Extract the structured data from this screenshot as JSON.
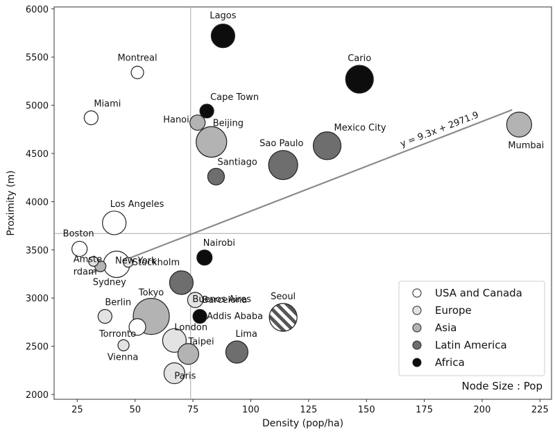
{
  "chart_data": {
    "type": "scatter",
    "xlabel": "Density (pop/ha)",
    "ylabel": "Proximity (m)",
    "xlim": [
      15,
      230
    ],
    "ylim": [
      1950,
      6020
    ],
    "xticks": [
      25,
      50,
      75,
      100,
      125,
      150,
      175,
      200,
      225
    ],
    "yticks": [
      2000,
      2500,
      3000,
      3500,
      4000,
      4500,
      5000,
      5500,
      6000
    ],
    "grid": false,
    "reference_lines": {
      "x": 74,
      "y": 3670
    },
    "trendline": {
      "label": "y = 9.3x + 2971.9",
      "slope": 9.3,
      "intercept": 2971.9,
      "x_range": [
        30,
        213
      ]
    },
    "legend": {
      "position": "bottom-right",
      "entries": [
        {
          "label": "USA and Canada",
          "color": "#ffffff"
        },
        {
          "label": "Europe",
          "color": "#e3e3e3"
        },
        {
          "label": "Asia",
          "color": "#b3b3b3"
        },
        {
          "label": "Latin America",
          "color": "#6e6e6e"
        },
        {
          "label": "Africa",
          "color": "#0d0d0d"
        }
      ]
    },
    "size_note": "Node Size : Pop",
    "colors": {
      "USA and Canada": "#ffffff",
      "Europe": "#e3e3e3",
      "Asia": "#b3b3b3",
      "Latin America": "#6e6e6e",
      "Africa": "#0d0d0d",
      "Seoul_hatch": "#555555",
      "trendline": "#8a8a8a",
      "reference": "#a8a8a8"
    },
    "points": [
      {
        "city": "Lagos",
        "region": "Africa",
        "x": 88,
        "y": 5720,
        "size": 17
      },
      {
        "city": "Montreal",
        "region": "USA and Canada",
        "x": 51,
        "y": 5340,
        "size": 9
      },
      {
        "city": "Cario",
        "region": "Africa",
        "x": 147,
        "y": 5270,
        "size": 20
      },
      {
        "city": "Miami",
        "region": "USA and Canada",
        "x": 31,
        "y": 4870,
        "size": 10
      },
      {
        "city": "Cape Town",
        "region": "Africa",
        "x": 81,
        "y": 4940,
        "size": 10
      },
      {
        "city": "Hanoi",
        "region": "Asia",
        "x": 77,
        "y": 4820,
        "size": 11
      },
      {
        "city": "Beijing",
        "region": "Asia",
        "x": 83,
        "y": 4620,
        "size": 22
      },
      {
        "city": "Mexico City",
        "region": "Latin America",
        "x": 133,
        "y": 4580,
        "size": 20
      },
      {
        "city": "Mumbai",
        "region": "Asia",
        "x": 216,
        "y": 4800,
        "size": 18
      },
      {
        "city": "Sao Paulo",
        "region": "Latin America",
        "x": 114,
        "y": 4380,
        "size": 21
      },
      {
        "city": "Santiago",
        "region": "Latin America",
        "x": 85,
        "y": 4260,
        "size": 12
      },
      {
        "city": "Los Angeles",
        "region": "USA and Canada",
        "x": 41,
        "y": 3780,
        "size": 17
      },
      {
        "city": "Boston",
        "region": "USA and Canada",
        "x": 26,
        "y": 3510,
        "size": 11
      },
      {
        "city": "New York",
        "region": "USA and Canada",
        "x": 42,
        "y": 3350,
        "size": 19
      },
      {
        "city": "Amsterdam",
        "region": "Europe",
        "x": 32,
        "y": 3380,
        "size": 7
      },
      {
        "city": "Sydney",
        "region": "Asia",
        "x": 35,
        "y": 3330,
        "size": 8
      },
      {
        "city": "Stockholm",
        "region": "Europe",
        "x": 47,
        "y": 3370,
        "size": 7
      },
      {
        "city": "Nairobi",
        "region": "Africa",
        "x": 80,
        "y": 3420,
        "size": 11
      },
      {
        "city": "Buenos Aires",
        "region": "Latin America",
        "x": 70,
        "y": 3160,
        "size": 17
      },
      {
        "city": "Barcelona",
        "region": "Europe",
        "x": 76,
        "y": 2980,
        "size": 11
      },
      {
        "city": "Seoul",
        "region": "Asia",
        "x": 114,
        "y": 2800,
        "size": 20,
        "pattern": "hatch"
      },
      {
        "city": "Tokyo",
        "region": "Asia",
        "x": 57,
        "y": 2810,
        "size": 26
      },
      {
        "city": "Addis Ababa",
        "region": "Africa",
        "x": 78,
        "y": 2810,
        "size": 10
      },
      {
        "city": "Berlin",
        "region": "Europe",
        "x": 37,
        "y": 2810,
        "size": 10
      },
      {
        "city": "Torronto",
        "region": "USA and Canada",
        "x": 51,
        "y": 2700,
        "size": 12
      },
      {
        "city": "London",
        "region": "Europe",
        "x": 67,
        "y": 2560,
        "size": 17
      },
      {
        "city": "Lima",
        "region": "Latin America",
        "x": 94,
        "y": 2440,
        "size": 16
      },
      {
        "city": "Taipei",
        "region": "Asia",
        "x": 73,
        "y": 2420,
        "size": 15
      },
      {
        "city": "Vienna",
        "region": "Europe",
        "x": 45,
        "y": 2510,
        "size": 8
      },
      {
        "city": "Paris",
        "region": "Europe",
        "x": 67,
        "y": 2220,
        "size": 15
      }
    ],
    "labels": [
      {
        "city": "Lagos",
        "text": "Lagos"
      },
      {
        "city": "Montreal",
        "text": "Montreal"
      },
      {
        "city": "Cario",
        "text": "Cario"
      },
      {
        "city": "Miami",
        "text": "Miami"
      },
      {
        "city": "Cape Town",
        "text": "Cape Town"
      },
      {
        "city": "Hanoi",
        "text": "Hanoi"
      },
      {
        "city": "Beijing",
        "text": "Beijing"
      },
      {
        "city": "Mexico City",
        "text": "Mexico City"
      },
      {
        "city": "Mumbai",
        "text": "Mumbai"
      },
      {
        "city": "Sao Paulo",
        "text": "Sao Paulo"
      },
      {
        "city": "Santiago",
        "text": "Santiago"
      },
      {
        "city": "Los Angeles",
        "text": "Los Angeles"
      },
      {
        "city": "Boston",
        "text": "Boston"
      },
      {
        "city": "New York",
        "text": "New York"
      },
      {
        "city": "Amsterdam",
        "text": "Amste"
      },
      {
        "city": "Amsterdam",
        "text": "rdam"
      },
      {
        "city": "Sydney",
        "text": "Sydney"
      },
      {
        "city": "Stockholm",
        "text": "Stockholm"
      },
      {
        "city": "Nairobi",
        "text": "Nairobi"
      },
      {
        "city": "Buenos Aires",
        "text": "Buenos Aires"
      },
      {
        "city": "Barcelona",
        "text": "Barcelona"
      },
      {
        "city": "Seoul",
        "text": "Seoul"
      },
      {
        "city": "Tokyo",
        "text": "Tokyo"
      },
      {
        "city": "Addis Ababa",
        "text": "Addis Ababa"
      },
      {
        "city": "Berlin",
        "text": "Berlin"
      },
      {
        "city": "Torronto",
        "text": "Torronto"
      },
      {
        "city": "London",
        "text": "London"
      },
      {
        "city": "Lima",
        "text": "Lima"
      },
      {
        "city": "Taipei",
        "text": "Taipei"
      },
      {
        "city": "Vienna",
        "text": "Vienna"
      },
      {
        "city": "Paris",
        "text": "Paris"
      }
    ]
  }
}
